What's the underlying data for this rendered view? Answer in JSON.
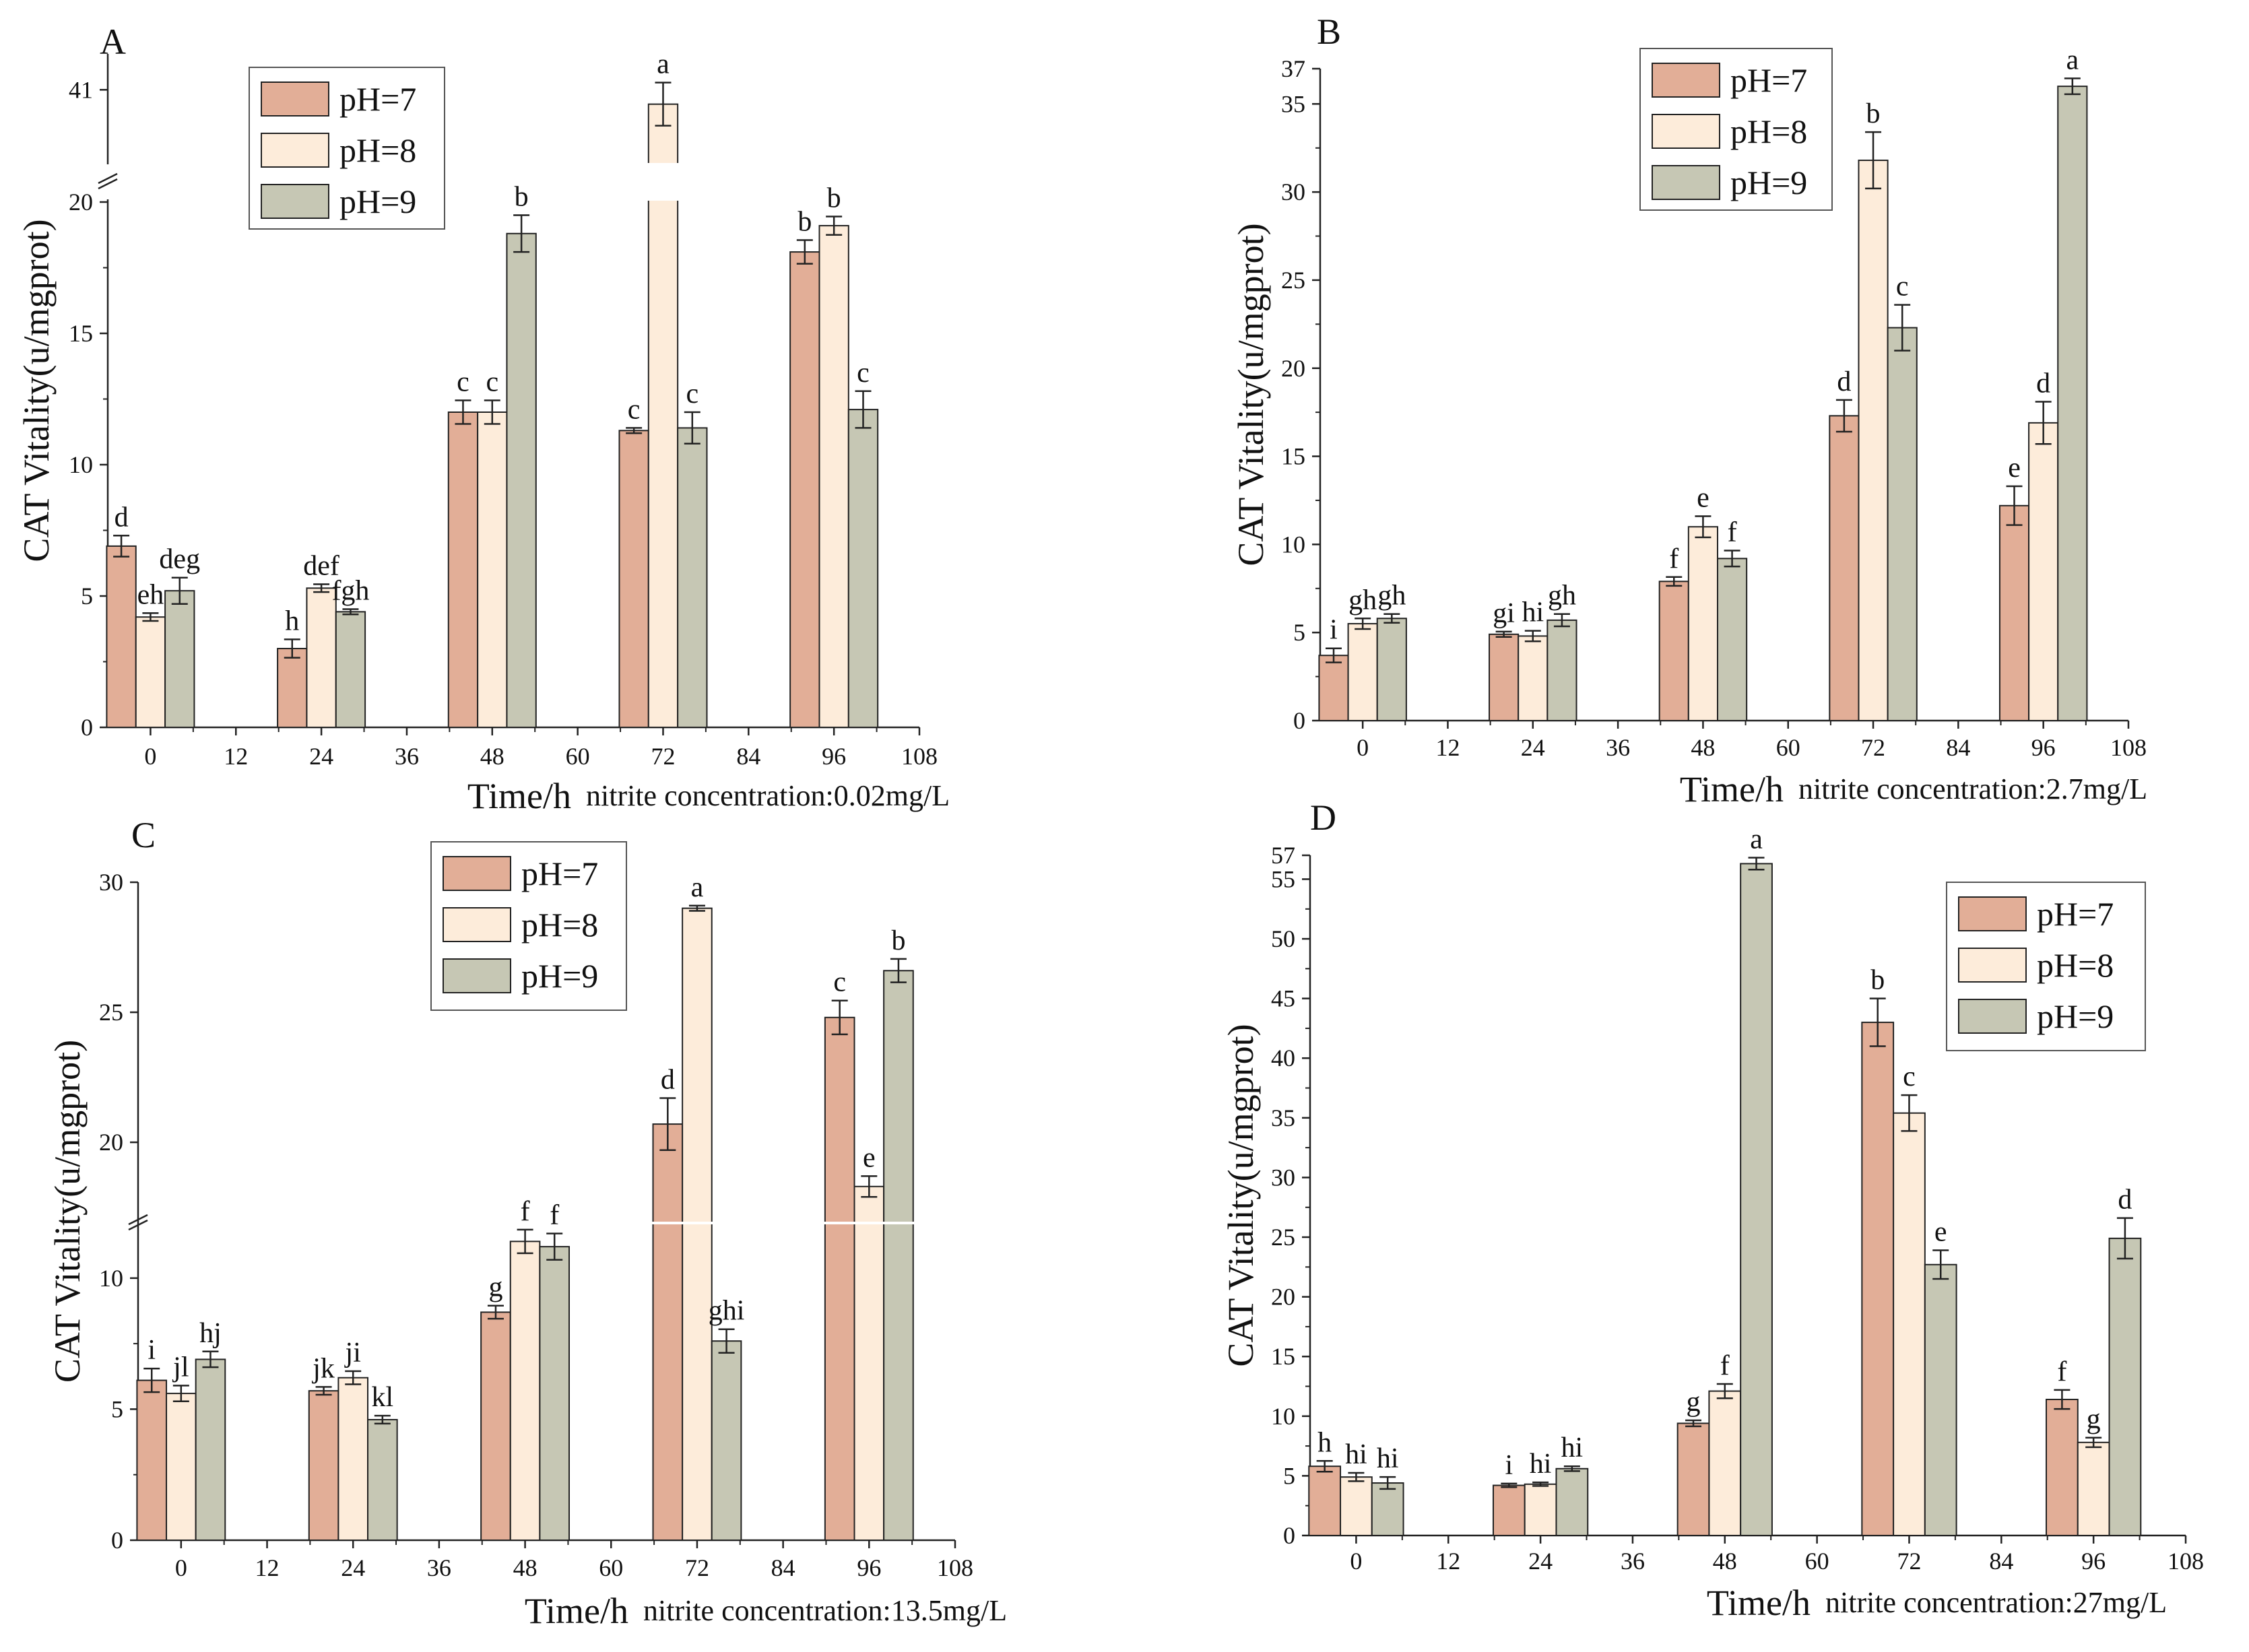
{
  "figure_title": "",
  "colors": {
    "ph7": "#e2ae97",
    "ph8": "#fdecda",
    "ph9": "#c6c7b4",
    "stroke": "#222222"
  },
  "chart_data": [
    {
      "type": "bar",
      "panel_label": "A",
      "title": "",
      "xlabel": "Time/h",
      "ylabel": "CAT Vitality(u/mgprot)",
      "condition": "nitrite concentration:0.02mg/L",
      "x_ticks": [
        "0",
        "12",
        "24",
        "36",
        "48",
        "60",
        "72",
        "84",
        "96",
        "108"
      ],
      "categories": [
        "0",
        "24",
        "48",
        "72",
        "96"
      ],
      "y_ticks_low": [
        "0",
        "5",
        "10",
        "15",
        "20"
      ],
      "y_ticks_high": [
        "41"
      ],
      "axis_break": [
        20,
        40
      ],
      "ylim": [
        0,
        41.5
      ],
      "legend_position": "top-left",
      "series": [
        {
          "name": "pH=7",
          "values": [
            6.9,
            3.0,
            12.0,
            11.3,
            18.1
          ],
          "errors": [
            0.4,
            0.35,
            0.45,
            0.1,
            0.45
          ],
          "letters": [
            "d",
            "h",
            "c",
            "c",
            "b"
          ]
        },
        {
          "name": "pH=8",
          "values": [
            4.2,
            5.3,
            12.0,
            40.8,
            19.1
          ],
          "errors": [
            0.15,
            0.15,
            0.45,
            0.3,
            0.35
          ],
          "letters": [
            "eh",
            "def",
            "c",
            "a",
            "b"
          ]
        },
        {
          "name": "pH=9",
          "values": [
            5.2,
            4.4,
            18.8,
            11.4,
            12.1
          ],
          "errors": [
            0.5,
            0.1,
            0.7,
            0.6,
            0.7
          ],
          "letters": [
            "deg",
            "fgh",
            "b",
            "c",
            "c"
          ]
        }
      ]
    },
    {
      "type": "bar",
      "panel_label": "B",
      "title": "",
      "xlabel": "Time/h",
      "ylabel": "CAT Vitality(u/mgprot)",
      "condition": "nitrite concentration:2.7mg/L",
      "x_ticks": [
        "0",
        "12",
        "24",
        "36",
        "48",
        "60",
        "72",
        "84",
        "96",
        "108"
      ],
      "categories": [
        "0",
        "24",
        "48",
        "72",
        "96"
      ],
      "y_ticks": [
        "0",
        "5",
        "10",
        "15",
        "20",
        "25",
        "30",
        "35",
        "37"
      ],
      "ylim": [
        0,
        37
      ],
      "legend_position": "top-left",
      "series": [
        {
          "name": "pH=7",
          "values": [
            3.7,
            4.9,
            7.9,
            17.3,
            12.2
          ],
          "errors": [
            0.4,
            0.15,
            0.25,
            0.9,
            1.1
          ],
          "letters": [
            "i",
            "gi",
            "f",
            "d",
            "e"
          ]
        },
        {
          "name": "pH=8",
          "values": [
            5.5,
            4.8,
            11.0,
            31.8,
            16.9
          ],
          "errors": [
            0.3,
            0.3,
            0.6,
            1.6,
            1.2
          ],
          "letters": [
            "gh",
            "hi",
            "e",
            "b",
            "d"
          ]
        },
        {
          "name": "pH=9",
          "values": [
            5.8,
            5.7,
            9.2,
            22.3,
            36.0
          ],
          "errors": [
            0.25,
            0.35,
            0.45,
            1.3,
            0.45
          ],
          "letters": [
            "gh",
            "gh",
            "f",
            "c",
            "a"
          ]
        }
      ]
    },
    {
      "type": "bar",
      "panel_label": "C",
      "title": "",
      "xlabel": "Time/h",
      "ylabel": "CAT Vitality(u/mgprot)",
      "condition": "nitrite concentration:13.5mg/L",
      "x_ticks": [
        "0",
        "12",
        "24",
        "36",
        "48",
        "60",
        "72",
        "84",
        "96",
        "108"
      ],
      "categories": [
        "0",
        "24",
        "48",
        "72",
        "96"
      ],
      "y_ticks_low": [
        "0",
        "5",
        "10"
      ],
      "y_ticks_high": [
        "20",
        "25",
        "30"
      ],
      "axis_break": [
        12,
        17
      ],
      "ylim": [
        0,
        30
      ],
      "legend_position": "top-center",
      "series": [
        {
          "name": "pH=7",
          "values": [
            6.1,
            5.7,
            8.7,
            20.7,
            24.8
          ],
          "errors": [
            0.45,
            0.15,
            0.25,
            1.0,
            0.65
          ],
          "letters": [
            "i",
            "jk",
            "g",
            "d",
            "c"
          ]
        },
        {
          "name": "pH=8",
          "values": [
            5.6,
            6.2,
            11.4,
            29.0,
            18.3
          ],
          "errors": [
            0.3,
            0.25,
            0.45,
            0.1,
            0.4
          ],
          "letters": [
            "jl",
            "ji",
            "f",
            "a",
            "e"
          ]
        },
        {
          "name": "pH=9",
          "values": [
            6.9,
            4.6,
            11.2,
            7.6,
            26.6
          ],
          "errors": [
            0.3,
            0.15,
            0.5,
            0.45,
            0.45
          ],
          "letters": [
            "hj",
            "kl",
            "f",
            "ghi",
            "b"
          ]
        }
      ]
    },
    {
      "type": "bar",
      "panel_label": "D",
      "title": "",
      "xlabel": "Time/h",
      "ylabel": "CAT Vitality(u/mgprot)",
      "condition": "nitrite concentration:27mg/L",
      "x_ticks": [
        "0",
        "12",
        "24",
        "36",
        "48",
        "60",
        "72",
        "84",
        "96",
        "108"
      ],
      "categories": [
        "0",
        "24",
        "48",
        "72",
        "96"
      ],
      "y_ticks": [
        "0",
        "5",
        "10",
        "15",
        "20",
        "25",
        "30",
        "35",
        "40",
        "45",
        "50",
        "55",
        "57"
      ],
      "ylim": [
        0,
        57
      ],
      "legend_position": "top-right",
      "series": [
        {
          "name": "pH=7",
          "values": [
            5.8,
            4.2,
            9.4,
            43.0,
            11.4
          ],
          "errors": [
            0.45,
            0.15,
            0.25,
            2.0,
            0.8
          ],
          "letters": [
            "h",
            "i",
            "g",
            "b",
            "f"
          ]
        },
        {
          "name": "pH=8",
          "values": [
            4.9,
            4.3,
            12.1,
            35.4,
            7.8
          ],
          "errors": [
            0.35,
            0.15,
            0.6,
            1.5,
            0.4
          ],
          "letters": [
            "hi",
            "hi",
            "f",
            "c",
            "g"
          ]
        },
        {
          "name": "pH=9",
          "values": [
            4.4,
            5.6,
            56.3,
            22.7,
            24.9
          ],
          "errors": [
            0.5,
            0.2,
            0.5,
            1.2,
            1.7
          ],
          "letters": [
            "hi",
            "hi",
            "a",
            "e",
            "d"
          ]
        }
      ]
    }
  ]
}
